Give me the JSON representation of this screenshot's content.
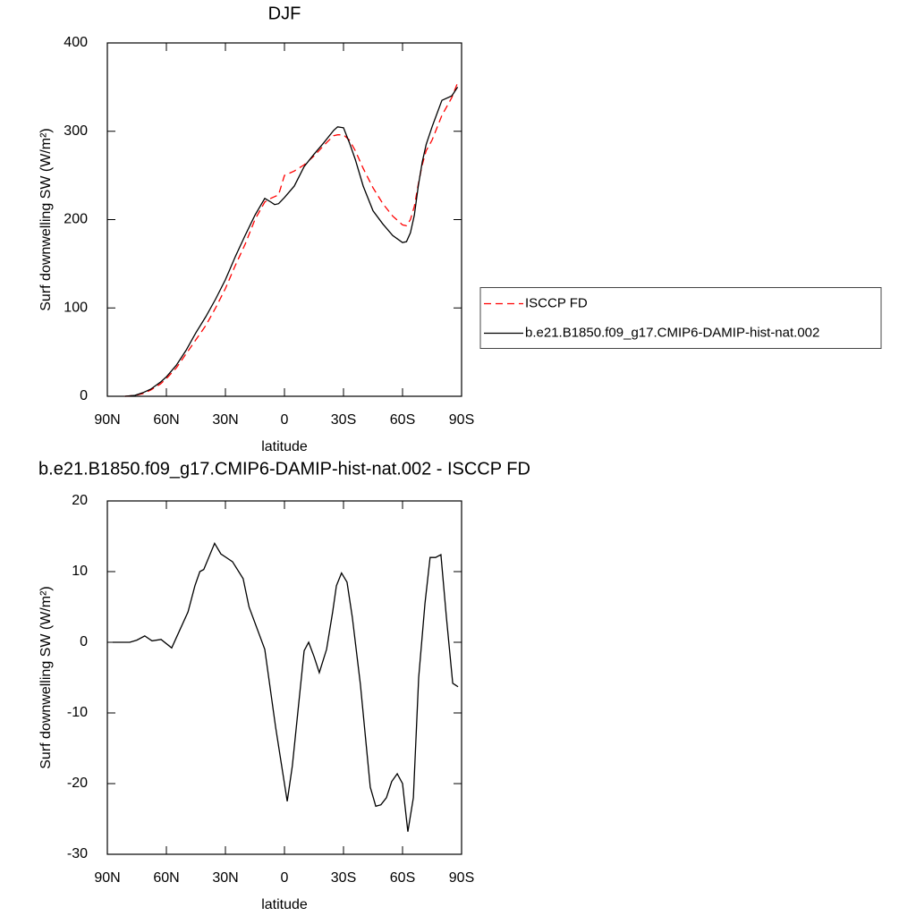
{
  "chart_data": [
    {
      "type": "line",
      "title": "DJF",
      "xlabel": "latitude",
      "ylabel": "Surf downwelling SW (W/m²)",
      "x": [
        81,
        76,
        72,
        68,
        63,
        60,
        55,
        50,
        45,
        40,
        35,
        30,
        25,
        20,
        15,
        10,
        7,
        5,
        3,
        0,
        -5,
        -10,
        -15,
        -20,
        -25,
        -27,
        -30,
        -33,
        -36,
        -40,
        -45,
        -50,
        -55,
        -60,
        -62,
        -64,
        -66,
        -68,
        -70,
        -72,
        -75,
        -80,
        -85,
        -88
      ],
      "series": [
        {
          "name": "ISCCP FD",
          "color": "#ff0000",
          "line_style": "dashed",
          "values": [
            0,
            1,
            3,
            7,
            14,
            20,
            32,
            48,
            64,
            80,
            100,
            122,
            148,
            172,
            200,
            220,
            224,
            226,
            228,
            250,
            255,
            262,
            272,
            284,
            295,
            296,
            296,
            290,
            278,
            258,
            236,
            218,
            204,
            194,
            193,
            200,
            215,
            240,
            262,
            278,
            290,
            318,
            338,
            355
          ]
        },
        {
          "name": "b.e21.B1850.f09_g17.CMIP6-DAMIP-hist-nat.002",
          "color": "#000000",
          "line_style": "solid",
          "values": [
            0,
            1,
            4,
            8,
            16,
            22,
            35,
            52,
            72,
            90,
            110,
            132,
            158,
            182,
            205,
            224,
            220,
            217,
            218,
            225,
            238,
            260,
            274,
            287,
            301,
            305,
            304,
            287,
            268,
            238,
            210,
            195,
            182,
            174,
            175,
            185,
            205,
            238,
            265,
            285,
            305,
            335,
            340,
            350
          ]
        }
      ],
      "xlim": [
        90,
        -90
      ],
      "xticks": [
        {
          "value": 90,
          "label": "90N"
        },
        {
          "value": 60,
          "label": "60N"
        },
        {
          "value": 30,
          "label": "30N"
        },
        0,
        {
          "value": -30,
          "label": "30S"
        },
        {
          "value": -60,
          "label": "60S"
        },
        {
          "value": -90,
          "label": "90S"
        }
      ],
      "ylim": [
        0,
        400
      ],
      "yticks": [
        0,
        100,
        200,
        300,
        400
      ],
      "legend": "right"
    },
    {
      "type": "line",
      "title": "b.e21.B1850.f09_g17.CMIP6-DAMIP-hist-nat.002 - ISCCP FD",
      "xlabel": "latitude",
      "ylabel": "Surf downwelling SW (W/m²)",
      "x": [
        87.3,
        78.6,
        75,
        71,
        67.3,
        62.7,
        57.3,
        49,
        45.5,
        43,
        41,
        35.5,
        32.3,
        26.4,
        21,
        18,
        10,
        4.5,
        -1.4,
        -4,
        -10,
        -12.3,
        -15,
        -17.7,
        -21.4,
        -24.5,
        -26.4,
        -29,
        -31.8,
        -34.5,
        -38.6,
        -43.6,
        -46.4,
        -49,
        -51.8,
        -54.5,
        -57.3,
        -60,
        -62.7,
        -65.5,
        -68.2,
        -71.4,
        -74,
        -76.8,
        -79.5,
        -82.3,
        -85.5,
        -88.2
      ],
      "values": [
        0,
        0,
        0.3,
        0.9,
        0.2,
        0.4,
        -0.8,
        4.3,
        8,
        10,
        10.3,
        14,
        12.5,
        11.4,
        9,
        5,
        -1,
        -12,
        -22.5,
        -17.5,
        -1.2,
        0,
        -2,
        -4.3,
        -1,
        4.3,
        8,
        9.8,
        8.5,
        3.5,
        -6,
        -20.5,
        -23.2,
        -23,
        -22,
        -19.7,
        -18.6,
        -20,
        -26.8,
        -22,
        -5,
        5.5,
        12,
        12,
        12.4,
        3.5,
        -5.8,
        -6.3
      ],
      "color": "#000000",
      "line_style": "solid",
      "xlim": [
        90,
        -90
      ],
      "xticks": [
        {
          "value": 90,
          "label": "90N"
        },
        {
          "value": 60,
          "label": "60N"
        },
        {
          "value": 30,
          "label": "30N"
        },
        0,
        {
          "value": -30,
          "label": "30S"
        },
        {
          "value": -60,
          "label": "60S"
        },
        {
          "value": -90,
          "label": "90S"
        }
      ],
      "ylim": [
        -30,
        20
      ],
      "yticks": [
        -30,
        -20,
        -10,
        0,
        10,
        20
      ]
    }
  ]
}
